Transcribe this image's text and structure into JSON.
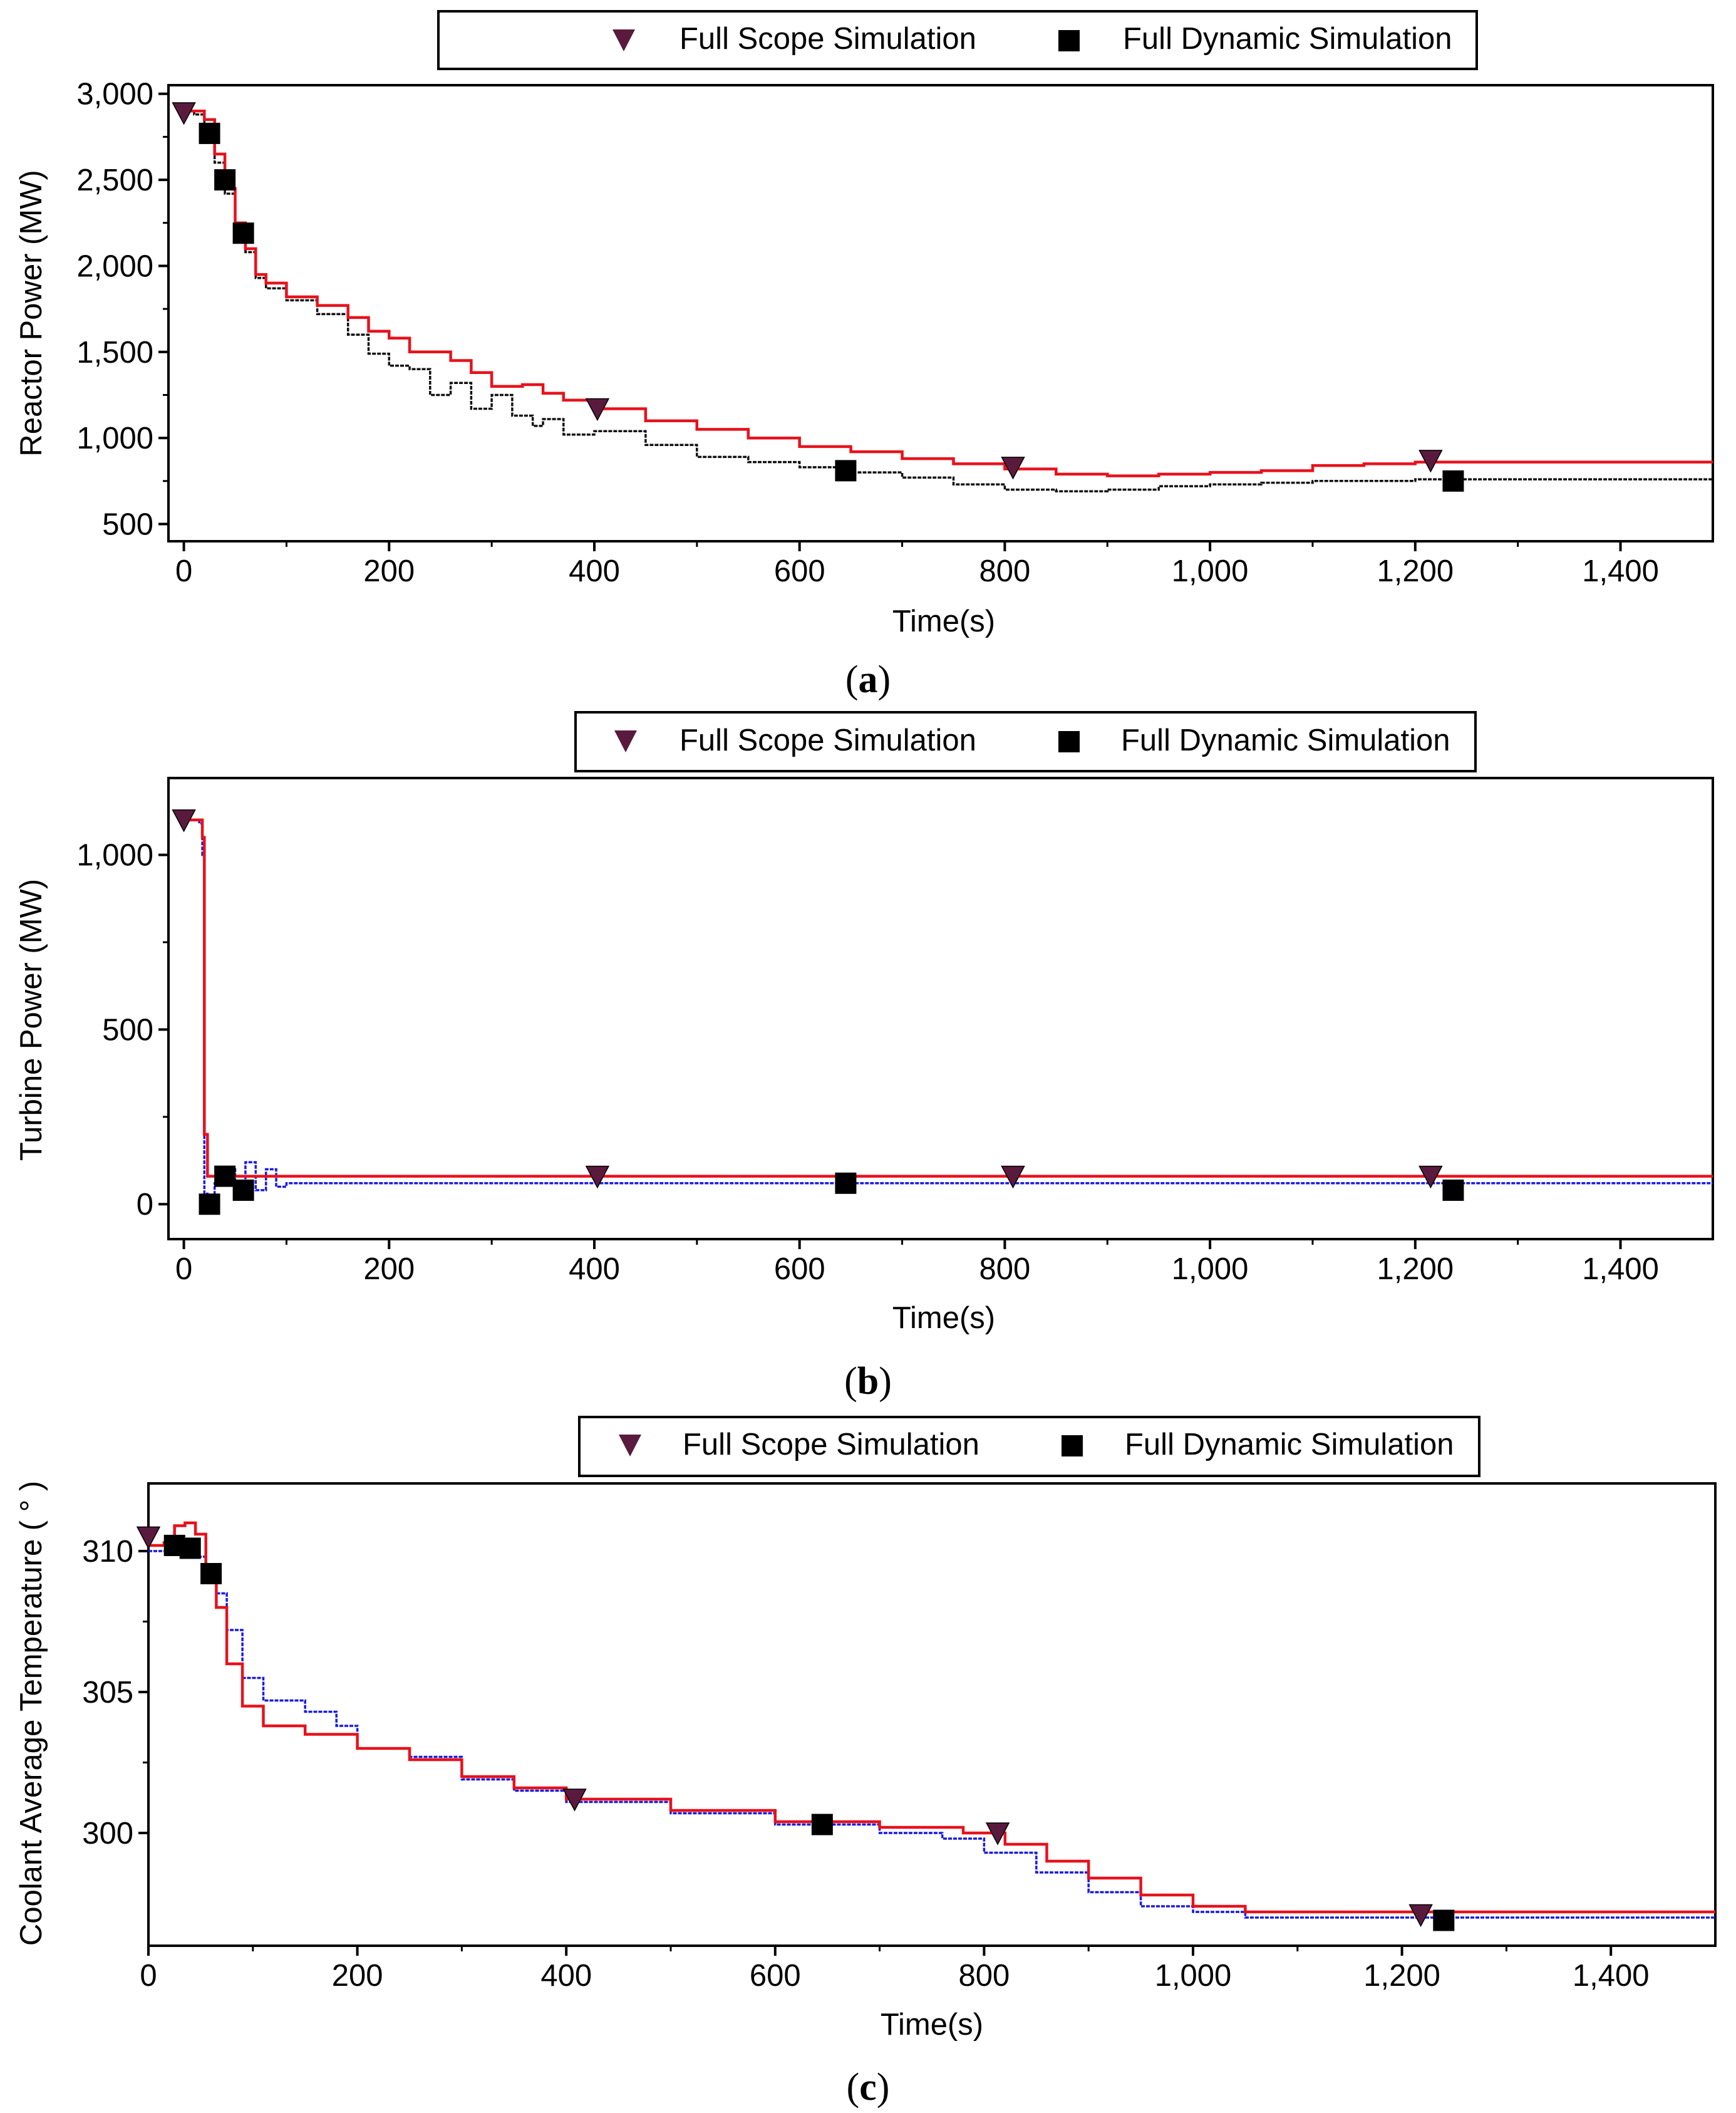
{
  "colors": {
    "full_scope": "#e8111b",
    "full_dynamic_a": "#111111",
    "full_dynamic_bc": "#1a1ae6",
    "triangle_marker": "#5a1a3e",
    "square_marker": "#000000"
  },
  "chart_data": [
    {
      "type": "line",
      "id": "a",
      "panel_label": "(a)",
      "panel_letter": "a",
      "title": "",
      "xlabel": "Time(s)",
      "ylabel": "Reactor Power (MW)",
      "xlim": [
        -15,
        1490
      ],
      "ylim": [
        400,
        3050
      ],
      "xticks": [
        0,
        200,
        400,
        600,
        800,
        1000,
        1200,
        1400
      ],
      "xtick_labels": [
        "0",
        "200",
        "400",
        "600",
        "800",
        "1,000",
        "1,200",
        "1,400"
      ],
      "yticks": [
        500,
        1000,
        1500,
        2000,
        2500,
        3000
      ],
      "ytick_labels": [
        "500",
        "1,000",
        "1,500",
        "2,000",
        "2,500",
        "3,000"
      ],
      "legend": [
        {
          "marker": "triangle",
          "label": "Full Scope Simulation"
        },
        {
          "marker": "square",
          "label": "Full Dynamic Simulation"
        }
      ],
      "series": [
        {
          "name": "Full Scope Simulation",
          "color_key": "full_scope",
          "marker": "triangle",
          "x": [
            0,
            10,
            20,
            30,
            40,
            50,
            60,
            70,
            80,
            100,
            130,
            160,
            180,
            200,
            220,
            240,
            260,
            280,
            300,
            330,
            350,
            370,
            400,
            450,
            500,
            550,
            600,
            650,
            700,
            750,
            800,
            850,
            900,
            950,
            1000,
            1050,
            1100,
            1150,
            1200,
            1250,
            1300,
            1400,
            1490
          ],
          "y": [
            2900,
            2900,
            2850,
            2650,
            2450,
            2250,
            2100,
            1950,
            1900,
            1820,
            1770,
            1700,
            1620,
            1580,
            1500,
            1500,
            1450,
            1380,
            1300,
            1310,
            1260,
            1220,
            1170,
            1100,
            1050,
            1000,
            950,
            920,
            880,
            850,
            820,
            790,
            780,
            790,
            800,
            810,
            840,
            850,
            860,
            860,
            860,
            860,
            860
          ]
        },
        {
          "name": "Full Dynamic Simulation",
          "color_key": "full_dynamic_a",
          "marker": "square",
          "x": [
            0,
            10,
            20,
            30,
            40,
            50,
            60,
            70,
            80,
            100,
            130,
            160,
            180,
            200,
            220,
            240,
            250,
            260,
            280,
            300,
            320,
            340,
            350,
            370,
            400,
            450,
            500,
            550,
            600,
            650,
            700,
            750,
            800,
            850,
            900,
            950,
            1000,
            1050,
            1100,
            1150,
            1200,
            1250,
            1300,
            1400,
            1490
          ],
          "y": [
            2900,
            2880,
            2800,
            2600,
            2420,
            2230,
            2080,
            1930,
            1870,
            1800,
            1720,
            1600,
            1490,
            1420,
            1400,
            1250,
            1250,
            1320,
            1170,
            1250,
            1130,
            1070,
            1110,
            1020,
            1040,
            960,
            890,
            860,
            830,
            800,
            770,
            730,
            700,
            690,
            700,
            720,
            730,
            740,
            750,
            750,
            760,
            760,
            760,
            760,
            760
          ]
        }
      ],
      "markers": {
        "triangle": {
          "x": [
            0,
            403,
            808,
            1215
          ],
          "y": [
            2890,
            1170,
            830,
            870
          ]
        },
        "square": {
          "x": [
            25,
            40,
            58,
            645,
            1237
          ],
          "y": [
            2770,
            2500,
            2190,
            810,
            750
          ]
        }
      }
    },
    {
      "type": "line",
      "id": "b",
      "panel_label": "(b)",
      "panel_letter": "b",
      "title": "",
      "xlabel": "Time(s)",
      "ylabel": "Turbine Power (MW)",
      "xlim": [
        -15,
        1490
      ],
      "ylim": [
        -100,
        1220
      ],
      "xticks": [
        0,
        200,
        400,
        600,
        800,
        1000,
        1200,
        1400
      ],
      "xtick_labels": [
        "0",
        "200",
        "400",
        "600",
        "800",
        "1,000",
        "1,200",
        "1,400"
      ],
      "yticks": [
        0,
        500,
        1000
      ],
      "ytick_labels": [
        "0",
        "500",
        "1,000"
      ],
      "legend": [
        {
          "marker": "triangle",
          "label": "Full Scope Simulation"
        },
        {
          "marker": "square",
          "label": "Full Dynamic Simulation"
        }
      ],
      "series": [
        {
          "name": "Full Scope Simulation",
          "color_key": "full_scope",
          "marker": "triangle",
          "x": [
            0,
            15,
            18,
            20,
            23,
            30,
            40,
            60,
            100,
            400,
            800,
            1200,
            1490
          ],
          "y": [
            1100,
            1100,
            1050,
            200,
            80,
            80,
            80,
            80,
            80,
            80,
            80,
            80,
            80
          ]
        },
        {
          "name": "Full Dynamic Simulation",
          "color_key": "full_dynamic_bc",
          "marker": "square",
          "x": [
            0,
            15,
            18,
            20,
            23,
            30,
            40,
            50,
            60,
            70,
            80,
            90,
            100,
            400,
            800,
            1200,
            1490
          ],
          "y": [
            1100,
            1090,
            1000,
            30,
            5,
            60,
            100,
            30,
            120,
            40,
            100,
            50,
            60,
            60,
            60,
            60,
            60
          ]
        }
      ],
      "markers": {
        "triangle": {
          "x": [
            0,
            403,
            808,
            1215
          ],
          "y": [
            1100,
            80,
            80,
            80
          ]
        },
        "square": {
          "x": [
            25,
            40,
            58,
            645,
            1237
          ],
          "y": [
            0,
            80,
            40,
            60,
            40
          ]
        }
      }
    },
    {
      "type": "line",
      "id": "c",
      "panel_label": "(c)",
      "panel_letter": "c",
      "title": "",
      "xlabel": "Time(s)",
      "ylabel": "Coolant Average Temperature (  °  )",
      "xlim": [
        0,
        1500
      ],
      "ylim": [
        296,
        312.4
      ],
      "xticks": [
        0,
        200,
        400,
        600,
        800,
        1000,
        1200,
        1400
      ],
      "xtick_labels": [
        "0",
        "200",
        "400",
        "600",
        "800",
        "1,000",
        "1,200",
        "1,400"
      ],
      "yticks": [
        300,
        305,
        310
      ],
      "ytick_labels": [
        "300",
        "305",
        "310"
      ],
      "legend": [
        {
          "marker": "triangle",
          "label": "Full Scope Simulation"
        },
        {
          "marker": "square",
          "label": "Full Dynamic Simulation"
        }
      ],
      "series": [
        {
          "name": "Full Scope Simulation",
          "color_key": "full_scope",
          "marker": "triangle",
          "x": [
            0,
            15,
            25,
            35,
            45,
            55,
            65,
            75,
            90,
            110,
            150,
            200,
            250,
            300,
            350,
            400,
            500,
            600,
            700,
            780,
            820,
            860,
            900,
            950,
            1000,
            1050,
            1100,
            1200,
            1300,
            1500
          ],
          "y": [
            310.2,
            310.3,
            310.9,
            311.0,
            310.6,
            309.5,
            308.0,
            306.0,
            304.5,
            303.8,
            303.5,
            303.0,
            302.6,
            302.0,
            301.6,
            301.2,
            300.8,
            300.4,
            300.2,
            300.0,
            299.6,
            299.0,
            298.4,
            297.8,
            297.4,
            297.2,
            297.2,
            297.2,
            297.2,
            297.2
          ]
        },
        {
          "name": "Full Dynamic Simulation",
          "color_key": "full_dynamic_bc",
          "marker": "square",
          "x": [
            0,
            15,
            30,
            45,
            55,
            65,
            75,
            90,
            110,
            150,
            180,
            200,
            250,
            300,
            350,
            400,
            500,
            600,
            700,
            760,
            800,
            850,
            900,
            950,
            1000,
            1050,
            1100,
            1200,
            1300,
            1500
          ],
          "y": [
            310.0,
            310.0,
            310.0,
            309.8,
            309.2,
            308.5,
            307.2,
            305.5,
            304.7,
            304.3,
            303.8,
            303.0,
            302.7,
            301.9,
            301.5,
            301.1,
            300.7,
            300.3,
            300.0,
            299.8,
            299.3,
            298.6,
            297.9,
            297.4,
            297.2,
            297.0,
            297.0,
            297.0,
            297.0,
            297.0
          ]
        }
      ],
      "markers": {
        "triangle": {
          "x": [
            0,
            408,
            813,
            1218
          ],
          "y": [
            310.5,
            301.2,
            300.0,
            297.1
          ]
        },
        "square": {
          "x": [
            25,
            40,
            60,
            645,
            1240
          ],
          "y": [
            310.2,
            310.1,
            309.2,
            300.3,
            296.9
          ]
        }
      }
    }
  ]
}
